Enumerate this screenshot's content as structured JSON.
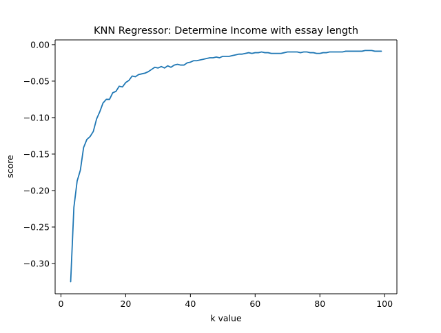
{
  "chart_data": {
    "type": "line",
    "title": "KNN Regressor: Determine Income with essay length",
    "xlabel": "k value",
    "ylabel": "score",
    "xlim": [
      -1.8,
      103.8
    ],
    "ylim": [
      -0.3415,
      0.0065
    ],
    "xticks": [
      0,
      20,
      40,
      60,
      80,
      100
    ],
    "yticks": [
      0.0,
      -0.05,
      -0.1,
      -0.15,
      -0.2,
      -0.25,
      -0.3
    ],
    "xtick_labels": [
      "0",
      "20",
      "40",
      "60",
      "80",
      "100"
    ],
    "ytick_labels": [
      "0.00",
      "−0.05",
      "−0.10",
      "−0.15",
      "−0.20",
      "−0.25",
      "−0.30"
    ],
    "grid": false,
    "line_color": "#1f77b4",
    "series": [
      {
        "x": [
          3,
          4,
          5,
          6,
          7,
          8,
          9,
          10,
          11,
          12,
          13,
          14,
          15,
          16,
          17,
          18,
          19,
          20,
          21,
          22,
          23,
          24,
          25,
          26,
          27,
          28,
          29,
          30,
          31,
          32,
          33,
          34,
          35,
          36,
          37,
          38,
          39,
          40,
          41,
          42,
          43,
          44,
          45,
          46,
          47,
          48,
          49,
          50,
          51,
          52,
          53,
          54,
          55,
          56,
          57,
          58,
          59,
          60,
          61,
          62,
          63,
          64,
          65,
          66,
          67,
          68,
          69,
          70,
          71,
          72,
          73,
          74,
          75,
          76,
          77,
          78,
          79,
          80,
          81,
          82,
          83,
          84,
          85,
          86,
          87,
          88,
          89,
          90,
          91,
          92,
          93,
          94,
          95,
          96,
          97,
          98,
          99
        ],
        "values": [
          -0.325,
          -0.223,
          -0.187,
          -0.172,
          -0.141,
          -0.13,
          -0.126,
          -0.119,
          -0.102,
          -0.092,
          -0.08,
          -0.075,
          -0.075,
          -0.066,
          -0.064,
          -0.057,
          -0.058,
          -0.052,
          -0.049,
          -0.043,
          -0.044,
          -0.041,
          -0.04,
          -0.039,
          -0.037,
          -0.034,
          -0.031,
          -0.032,
          -0.03,
          -0.032,
          -0.029,
          -0.031,
          -0.028,
          -0.027,
          -0.028,
          -0.028,
          -0.025,
          -0.024,
          -0.022,
          -0.022,
          -0.021,
          -0.02,
          -0.019,
          -0.018,
          -0.018,
          -0.017,
          -0.018,
          -0.016,
          -0.016,
          -0.016,
          -0.015,
          -0.014,
          -0.013,
          -0.013,
          -0.012,
          -0.011,
          -0.012,
          -0.011,
          -0.011,
          -0.01,
          -0.011,
          -0.011,
          -0.012,
          -0.012,
          -0.012,
          -0.012,
          -0.011,
          -0.01,
          -0.01,
          -0.01,
          -0.01,
          -0.011,
          -0.01,
          -0.01,
          -0.011,
          -0.011,
          -0.012,
          -0.012,
          -0.011,
          -0.011,
          -0.01,
          -0.01,
          -0.01,
          -0.01,
          -0.01,
          -0.009,
          -0.009,
          -0.009,
          -0.009,
          -0.009,
          -0.009,
          -0.008,
          -0.008,
          -0.008,
          -0.009,
          -0.009,
          -0.009
        ]
      }
    ]
  }
}
